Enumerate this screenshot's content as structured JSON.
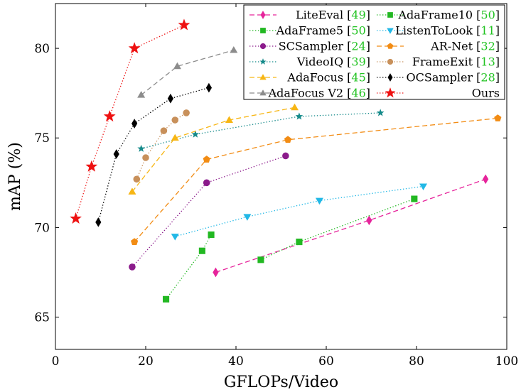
{
  "chart_data": {
    "type": "line",
    "xlabel": "GFLOPs/Video",
    "ylabel": "mAP (%)",
    "xlim": [
      0,
      100
    ],
    "ylim": [
      63.2,
      82.5
    ],
    "xticks": [
      "0",
      "20",
      "40",
      "60",
      "80",
      "100"
    ],
    "yticks": [
      "65",
      "70",
      "75",
      "80"
    ],
    "grid": false,
    "legend_position": "top-right",
    "series": [
      {
        "name": "LiteEval",
        "cite": "[49]",
        "color": "#e6249b",
        "marker": "diamond",
        "dash": "dashed",
        "x": [
          35.5,
          69.5,
          95.3
        ],
        "y": [
          67.5,
          70.4,
          72.7
        ]
      },
      {
        "name": "AdaFrame10",
        "cite": "[50]",
        "color": "#22b822",
        "marker": "square",
        "dash": "dotted",
        "x": [
          45.5,
          54,
          79.5
        ],
        "y": [
          68.2,
          69.2,
          71.6
        ]
      },
      {
        "name": "AdaFrame5",
        "cite": "[50]",
        "color": "#22b822",
        "marker": "square",
        "dash": "dotted",
        "x": [
          24.5,
          32.5,
          34.5
        ],
        "y": [
          66.0,
          68.7,
          69.6
        ]
      },
      {
        "name": "ListenToLook",
        "cite": "[11]",
        "color": "#22b8e6",
        "marker": "triangle-down",
        "dash": "dotted",
        "x": [
          26.5,
          42.5,
          58.5,
          81.5
        ],
        "y": [
          69.5,
          70.6,
          71.5,
          72.3
        ]
      },
      {
        "name": "SCSampler",
        "cite": "[24]",
        "color": "#8b1a8b",
        "marker": "circle",
        "dash": "dotted",
        "x": [
          17,
          33.5,
          51
        ],
        "y": [
          67.8,
          72.5,
          74.0
        ]
      },
      {
        "name": "AR-Net",
        "cite": "[32]",
        "color": "#f28c14",
        "marker": "pentagon",
        "dash": "dashed",
        "x": [
          17.5,
          33.5,
          51.5,
          98
        ],
        "y": [
          69.2,
          73.8,
          74.9,
          76.1
        ]
      },
      {
        "name": "VideoIQ",
        "cite": "[39]",
        "color": "#158a8a",
        "marker": "star-small",
        "dash": "dotted",
        "x": [
          19,
          31,
          54,
          72
        ],
        "y": [
          74.4,
          75.2,
          76.2,
          76.4
        ]
      },
      {
        "name": "FrameExit",
        "cite": "[13]",
        "color": "#c8905a",
        "marker": "circle",
        "dash": "dotted",
        "x": [
          18,
          20,
          24,
          26.5,
          29
        ],
        "y": [
          72.7,
          73.9,
          75.4,
          76.0,
          76.4
        ]
      },
      {
        "name": "AdaFocus",
        "cite": "[45]",
        "color": "#f7b614",
        "marker": "triangle",
        "dash": "dashed",
        "x": [
          17,
          26.5,
          38.5,
          53
        ],
        "y": [
          72.0,
          75.0,
          76.0,
          76.7
        ]
      },
      {
        "name": "OCSampler",
        "cite": "[28]",
        "color": "#000000",
        "marker": "diamond",
        "dash": "dotted",
        "x": [
          9.5,
          13.5,
          17.5,
          21.5,
          25.5,
          34
        ],
        "y": [
          70.3,
          74.1,
          75.8,
          null,
          77.2,
          77.8
        ]
      },
      {
        "name": "AdaFocus V2",
        "cite": "[46]",
        "color": "#8c8c8c",
        "marker": "triangle",
        "dash": "dashed",
        "x": [
          19,
          27,
          39.5
        ],
        "y": [
          77.4,
          79.0,
          79.9
        ]
      },
      {
        "name": "Ours",
        "cite": "",
        "color": "#ee1111",
        "marker": "star",
        "dash": "dotted",
        "x": [
          4.5,
          8,
          12,
          17.5,
          28.5
        ],
        "y": [
          70.5,
          73.4,
          76.2,
          80.0,
          81.3
        ]
      }
    ]
  }
}
